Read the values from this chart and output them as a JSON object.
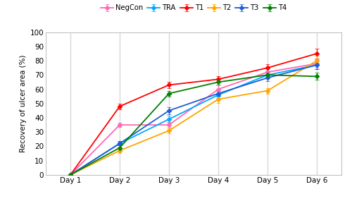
{
  "x_labels": [
    "Day 1",
    "Day 2",
    "Day 3",
    "Day 4",
    "Day 5",
    "Day 6"
  ],
  "x_values": [
    1,
    2,
    3,
    4,
    5,
    6
  ],
  "series": {
    "NegCon": {
      "values": [
        0,
        35,
        35,
        60,
        72,
        78
      ],
      "errors": [
        0,
        1.5,
        2.0,
        2.5,
        2.5,
        3.0
      ],
      "color": "#ff69b4",
      "marker": "D",
      "markersize": 3.5
    },
    "TRA": {
      "values": [
        0,
        22,
        39,
        56,
        70,
        77
      ],
      "errors": [
        0,
        1.5,
        2.5,
        2.0,
        2.5,
        3.0
      ],
      "color": "#00aaff",
      "marker": "D",
      "markersize": 3.5
    },
    "T1": {
      "values": [
        0,
        48,
        63,
        67,
        75,
        85
      ],
      "errors": [
        0,
        2.0,
        2.0,
        2.0,
        2.5,
        3.5
      ],
      "color": "#ff0000",
      "marker": "D",
      "markersize": 3.5
    },
    "T2": {
      "values": [
        0,
        17,
        31,
        53,
        59,
        80
      ],
      "errors": [
        0,
        1.5,
        2.0,
        2.5,
        2.0,
        3.5
      ],
      "color": "#ffa500",
      "marker": "D",
      "markersize": 3.5
    },
    "T3": {
      "values": [
        0,
        22,
        45,
        57,
        68,
        77
      ],
      "errors": [
        0,
        1.5,
        2.5,
        2.0,
        2.5,
        3.0
      ],
      "color": "#1e5cd4",
      "marker": "D",
      "markersize": 3.5
    },
    "T4": {
      "values": [
        0,
        19,
        57,
        65,
        70,
        69
      ],
      "errors": [
        0,
        1.5,
        2.0,
        2.0,
        2.0,
        2.5
      ],
      "color": "#008000",
      "marker": "D",
      "markersize": 3.5
    }
  },
  "ylabel": "Recovery of ulcer area (%)",
  "ylim": [
    0,
    100
  ],
  "yticks": [
    0,
    10,
    20,
    30,
    40,
    50,
    60,
    70,
    80,
    90,
    100
  ],
  "plot_bg": "#ffffff",
  "fig_bg": "#ffffff",
  "grid_color": "#d8d8d8",
  "legend_order": [
    "NegCon",
    "TRA",
    "T1",
    "T2",
    "T3",
    "T4"
  ]
}
